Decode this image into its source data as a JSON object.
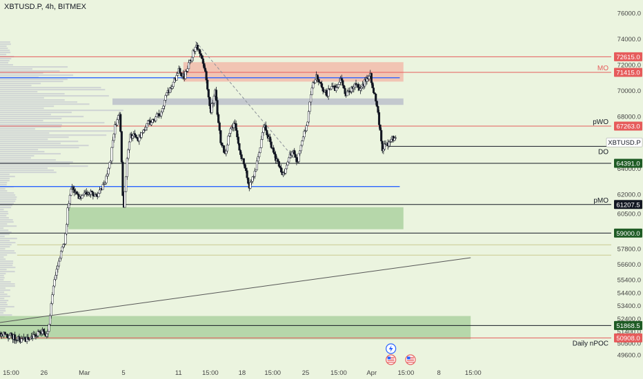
{
  "header": {
    "symbol_title": "XBTUSD.P, 4h, BITMEX"
  },
  "colors": {
    "background": "#ebf4df",
    "red_line": "#e65b5b",
    "blue_line": "#2962ff",
    "black_line": "#131722",
    "green_zone": "#a9cf9c",
    "red_zone": "#f2b8a8",
    "grey_zone": "#b9bdc9",
    "green_tag": "#1e5b24",
    "red_tag": "#e65b5b",
    "volume_profile": "#c8ccd2"
  },
  "chart_data": {
    "type": "candlestick",
    "title": "XBTUSD.P, 4h, BITMEX",
    "x_range": [
      0,
      50
    ],
    "ylim": [
      48800,
      77000
    ],
    "x_ticks": [
      {
        "x": 0.0,
        "label": "15:00"
      },
      {
        "x": 2.7,
        "label": "26"
      },
      {
        "x": 6.0,
        "label": "Mar"
      },
      {
        "x": 9.2,
        "label": "5"
      },
      {
        "x": 13.7,
        "label": "11"
      },
      {
        "x": 16.3,
        "label": "15:00"
      },
      {
        "x": 18.9,
        "label": "18"
      },
      {
        "x": 21.4,
        "label": "15:00"
      },
      {
        "x": 24.1,
        "label": "25"
      },
      {
        "x": 26.8,
        "label": "15:00"
      },
      {
        "x": 29.5,
        "label": "Apr"
      },
      {
        "x": 32.3,
        "label": "15:00"
      },
      {
        "x": 35.0,
        "label": "8"
      },
      {
        "x": 37.8,
        "label": "15:00"
      }
    ],
    "y_ticks": [
      76000,
      74000,
      72000,
      70000,
      68000,
      66006,
      64000,
      62000,
      60500,
      57800,
      56600,
      55400,
      54400,
      53400,
      52400,
      51400,
      50500,
      49600
    ],
    "price_path": [
      [
        0.0,
        51300
      ],
      [
        1.0,
        51000
      ],
      [
        2.0,
        50700
      ],
      [
        2.8,
        51100
      ],
      [
        3.5,
        51400
      ],
      [
        3.9,
        51000
      ],
      [
        4.1,
        52800
      ],
      [
        4.5,
        55600
      ],
      [
        4.9,
        57200
      ],
      [
        5.3,
        58400
      ],
      [
        5.6,
        61400
      ],
      [
        5.9,
        62600
      ],
      [
        6.4,
        61800
      ],
      [
        7.0,
        62100
      ],
      [
        8.0,
        61900
      ],
      [
        8.6,
        62900
      ],
      [
        9.0,
        64400
      ],
      [
        9.4,
        67300
      ],
      [
        9.8,
        68300
      ],
      [
        10.1,
        60400
      ],
      [
        10.4,
        64600
      ],
      [
        10.7,
        66600
      ],
      [
        11.3,
        66300
      ],
      [
        11.9,
        67300
      ],
      [
        12.6,
        67800
      ],
      [
        13.1,
        68300
      ],
      [
        13.6,
        69600
      ],
      [
        14.1,
        70400
      ],
      [
        14.6,
        71600
      ],
      [
        15.1,
        71100
      ],
      [
        15.6,
        72400
      ],
      [
        16.0,
        73400
      ],
      [
        16.4,
        73000
      ],
      [
        16.8,
        71600
      ],
      [
        17.2,
        68300
      ],
      [
        17.6,
        70100
      ],
      [
        18.0,
        66300
      ],
      [
        18.4,
        65100
      ],
      [
        18.8,
        66800
      ],
      [
        19.2,
        67600
      ],
      [
        19.6,
        65300
      ],
      [
        20.0,
        64400
      ],
      [
        20.4,
        62600
      ],
      [
        20.8,
        63500
      ],
      [
        21.2,
        65300
      ],
      [
        21.6,
        67300
      ],
      [
        22.0,
        66300
      ],
      [
        22.4,
        65100
      ],
      [
        22.8,
        64400
      ],
      [
        23.2,
        63500
      ],
      [
        23.6,
        64700
      ],
      [
        24.0,
        65300
      ],
      [
        24.3,
        64400
      ],
      [
        24.7,
        66300
      ],
      [
        25.1,
        67300
      ],
      [
        25.5,
        70400
      ],
      [
        25.9,
        71100
      ],
      [
        26.3,
        70400
      ],
      [
        26.7,
        69600
      ],
      [
        27.1,
        70400
      ],
      [
        27.5,
        70100
      ],
      [
        27.9,
        71100
      ],
      [
        28.3,
        69600
      ],
      [
        28.7,
        70100
      ],
      [
        29.1,
        70400
      ],
      [
        29.5,
        70100
      ],
      [
        29.9,
        70700
      ],
      [
        30.3,
        71200
      ],
      [
        30.6,
        69900
      ],
      [
        30.9,
        68300
      ],
      [
        31.1,
        66800
      ],
      [
        31.3,
        65300
      ],
      [
        31.5,
        65900
      ],
      [
        31.8,
        65900
      ],
      [
        32.1,
        66400
      ],
      [
        32.4,
        66100
      ]
    ],
    "levels": [
      {
        "price": 72615.0,
        "label": "72615.0",
        "color": "red"
      },
      {
        "price": 71415.0,
        "label": "71415.0",
        "color": "red",
        "annotation": "MO"
      },
      {
        "price": 71000,
        "label": "",
        "color": "blue"
      },
      {
        "price": 67263.0,
        "label": "67263.0",
        "color": "red",
        "annotation": "pWO"
      },
      {
        "price": 66006.0,
        "label": "XBTUSD.P",
        "color": "white"
      },
      {
        "price": 65700,
        "label": "",
        "color": "black",
        "annotation": "DO"
      },
      {
        "price": 64391.0,
        "label": "64391.0",
        "color": "green"
      },
      {
        "price": 62600,
        "label": "",
        "color": "blue"
      },
      {
        "price": 61207.5,
        "label": "61207.5",
        "color": "black",
        "annotation": "pMO"
      },
      {
        "price": 59000.0,
        "label": "59000.0",
        "color": "green"
      },
      {
        "price": 51868.5,
        "label": "51868.5",
        "color": "green"
      },
      {
        "price": 50908.0,
        "label": "50908.0",
        "color": "red",
        "annotation": "Daily nPOC"
      }
    ],
    "zones": [
      {
        "type": "red",
        "x1": 15.0,
        "x2": 33.0,
        "y1": 70700,
        "y2": 72200
      },
      {
        "type": "grey",
        "x1": 9.2,
        "x2": 33.0,
        "y1": 68900,
        "y2": 69400
      },
      {
        "type": "green",
        "x1": 5.6,
        "x2": 33.0,
        "y1": 59300,
        "y2": 61000
      },
      {
        "type": "green",
        "x1": 0,
        "x2": 38.5,
        "y1": 50800,
        "y2": 52600
      }
    ],
    "trendlines": [
      {
        "x1": 16.0,
        "y1": 73800,
        "x2": 24.4,
        "y2": 64400,
        "style": "dashed"
      },
      {
        "x1": 0,
        "y1": 52100,
        "x2": 38.5,
        "y2": 57100,
        "style": "solid"
      }
    ],
    "event_icons": [
      {
        "x": 31.3,
        "name": "lightning-event-icon"
      },
      {
        "x": 31.3,
        "name": "us-flag-event-icon"
      },
      {
        "x": 32.9,
        "name": "us-flag-event-icon"
      }
    ]
  }
}
